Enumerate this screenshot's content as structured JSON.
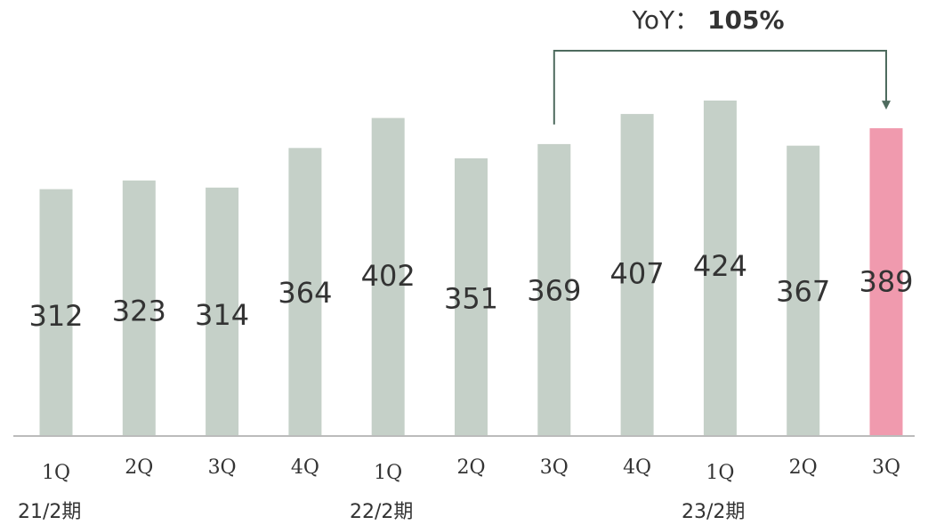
{
  "chart_data": {
    "type": "bar",
    "categories": [
      "1Q",
      "2Q",
      "3Q",
      "4Q",
      "1Q",
      "2Q",
      "3Q",
      "4Q",
      "1Q",
      "2Q",
      "3Q"
    ],
    "fiscal_years": [
      "21/2期",
      "22/2期",
      "23/2期"
    ],
    "values": [
      312,
      323,
      314,
      364,
      402,
      351,
      369,
      407,
      424,
      367,
      389
    ],
    "highlight_index": 10,
    "title": "",
    "xlabel": "",
    "ylabel": "",
    "ylim": [
      0,
      424
    ],
    "grid": false,
    "legend": "none",
    "colors": {
      "bar": "#c5d0c8",
      "highlight": "#f09aae",
      "axis": "#bbbbbb",
      "annotation": "#4e6b5e"
    },
    "annotation": {
      "from_index": 6,
      "to_index": 10,
      "prefix": "YoY：",
      "value": "105%"
    }
  }
}
